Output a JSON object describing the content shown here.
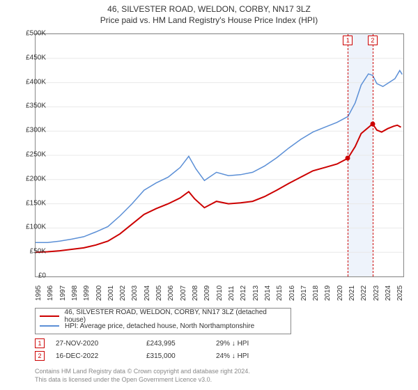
{
  "title_line1": "46, SILVESTER ROAD, WELDON, CORBY, NN17 3LZ",
  "title_line2": "Price paid vs. HM Land Registry's House Price Index (HPI)",
  "chart": {
    "type": "line",
    "x_range": [
      1995,
      2025.5
    ],
    "y_range": [
      0,
      500000
    ],
    "y_ticks": [
      0,
      50000,
      100000,
      150000,
      200000,
      250000,
      300000,
      350000,
      400000,
      450000,
      500000
    ],
    "y_tick_labels": [
      "£0",
      "£50K",
      "£100K",
      "£150K",
      "£200K",
      "£250K",
      "£300K",
      "£350K",
      "£400K",
      "£450K",
      "£500K"
    ],
    "x_ticks": [
      1995,
      1996,
      1997,
      1998,
      1999,
      2000,
      2001,
      2002,
      2003,
      2004,
      2005,
      2006,
      2007,
      2008,
      2009,
      2010,
      2011,
      2012,
      2013,
      2014,
      2015,
      2016,
      2017,
      2018,
      2019,
      2020,
      2021,
      2022,
      2023,
      2024,
      2025
    ],
    "background_color": "#ffffff",
    "border_color": "#888888",
    "grid_color": "#e8e8e8",
    "series": [
      {
        "name": "property",
        "label": "46, SILVESTER ROAD, WELDON, CORBY, NN17 3LZ (detached house)",
        "color": "#cc0000",
        "line_width": 2,
        "points": [
          [
            1995,
            50000
          ],
          [
            1996,
            51000
          ],
          [
            1997,
            53000
          ],
          [
            1998,
            56000
          ],
          [
            1999,
            59000
          ],
          [
            2000,
            65000
          ],
          [
            2001,
            73000
          ],
          [
            2002,
            88000
          ],
          [
            2003,
            108000
          ],
          [
            2004,
            128000
          ],
          [
            2005,
            140000
          ],
          [
            2006,
            150000
          ],
          [
            2007,
            162000
          ],
          [
            2007.7,
            175000
          ],
          [
            2008.2,
            160000
          ],
          [
            2009,
            142000
          ],
          [
            2010,
            155000
          ],
          [
            2011,
            150000
          ],
          [
            2012,
            152000
          ],
          [
            2013,
            155000
          ],
          [
            2014,
            165000
          ],
          [
            2015,
            178000
          ],
          [
            2016,
            192000
          ],
          [
            2017,
            205000
          ],
          [
            2018,
            218000
          ],
          [
            2019,
            225000
          ],
          [
            2020,
            232000
          ],
          [
            2020.9,
            243995
          ],
          [
            2021.5,
            268000
          ],
          [
            2022,
            295000
          ],
          [
            2022.95,
            315000
          ],
          [
            2023.3,
            302000
          ],
          [
            2023.7,
            298000
          ],
          [
            2024.2,
            305000
          ],
          [
            2024.7,
            310000
          ],
          [
            2025,
            312000
          ],
          [
            2025.3,
            308000
          ]
        ]
      },
      {
        "name": "hpi",
        "label": "HPI: Average price, detached house, North Northamptonshire",
        "color": "#5b8fd6",
        "line_width": 1.5,
        "points": [
          [
            1995,
            70000
          ],
          [
            1996,
            70000
          ],
          [
            1997,
            73000
          ],
          [
            1998,
            77000
          ],
          [
            1999,
            82000
          ],
          [
            2000,
            92000
          ],
          [
            2001,
            103000
          ],
          [
            2002,
            125000
          ],
          [
            2003,
            150000
          ],
          [
            2004,
            178000
          ],
          [
            2005,
            193000
          ],
          [
            2006,
            205000
          ],
          [
            2007,
            225000
          ],
          [
            2007.7,
            248000
          ],
          [
            2008.3,
            222000
          ],
          [
            2009,
            198000
          ],
          [
            2010,
            215000
          ],
          [
            2011,
            208000
          ],
          [
            2012,
            210000
          ],
          [
            2013,
            215000
          ],
          [
            2014,
            228000
          ],
          [
            2015,
            245000
          ],
          [
            2016,
            265000
          ],
          [
            2017,
            283000
          ],
          [
            2018,
            298000
          ],
          [
            2019,
            308000
          ],
          [
            2020,
            318000
          ],
          [
            2020.9,
            330000
          ],
          [
            2021.5,
            358000
          ],
          [
            2022,
            395000
          ],
          [
            2022.6,
            418000
          ],
          [
            2022.95,
            415000
          ],
          [
            2023.3,
            398000
          ],
          [
            2023.8,
            392000
          ],
          [
            2024.3,
            400000
          ],
          [
            2024.8,
            408000
          ],
          [
            2025.2,
            425000
          ],
          [
            2025.4,
            417000
          ]
        ]
      }
    ],
    "events": [
      {
        "n": "1",
        "x": 2020.9,
        "date": "27-NOV-2020",
        "price": "£243,995",
        "pct": "29% ↓ HPI",
        "marker_color": "#cc0000",
        "dot_y": 243995
      },
      {
        "n": "2",
        "x": 2022.95,
        "date": "16-DEC-2022",
        "price": "£315,000",
        "pct": "24% ↓ HPI",
        "marker_color": "#cc0000",
        "dot_y": 315000
      }
    ],
    "event_band": {
      "from": 2020.9,
      "to": 2022.95,
      "color": "#eef3fb"
    },
    "event_line_color": "#cc0000",
    "dot_fill": "#cc0000"
  },
  "footer_line1": "Contains HM Land Registry data © Crown copyright and database right 2024.",
  "footer_line2": "This data is licensed under the Open Government Licence v3.0."
}
